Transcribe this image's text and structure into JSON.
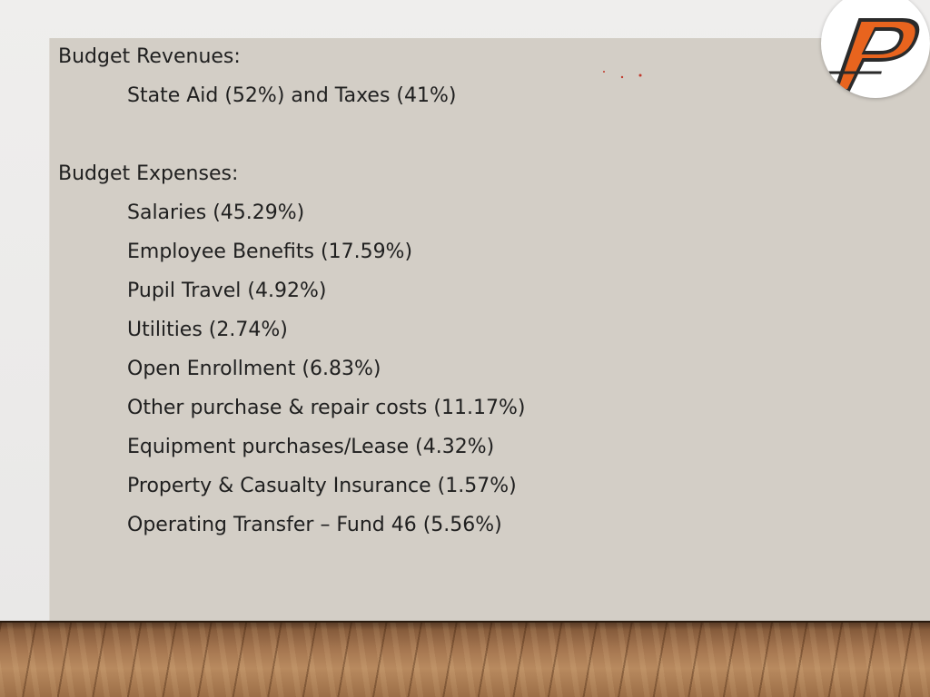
{
  "slide": {
    "revenues_heading": "Budget Revenues:",
    "revenues_items": [
      "State Aid (52%) and Taxes (41%)"
    ],
    "expenses_heading": "Budget Expenses:",
    "expenses_items": [
      "Salaries (45.29%)",
      "Employee Benefits (17.59%)",
      "Pupil Travel (4.92%)",
      "Utilities (2.74%)",
      "Open Enrollment (6.83%)",
      "Other purchase & repair costs (11.17%)",
      "Equipment purchases/Lease (4.32%)",
      "Property & Casualty Insurance (1.57%)",
      "Operating Transfer – Fund 46  (5.56%)"
    ]
  },
  "logo": {
    "letter": "P",
    "colors": {
      "primary": "#e8641e",
      "outline": "#2a2a2a",
      "background": "#ffffff"
    }
  },
  "colors": {
    "panel": "#d3cec6",
    "text": "#1f1f1f",
    "dots": "#c0392b"
  }
}
